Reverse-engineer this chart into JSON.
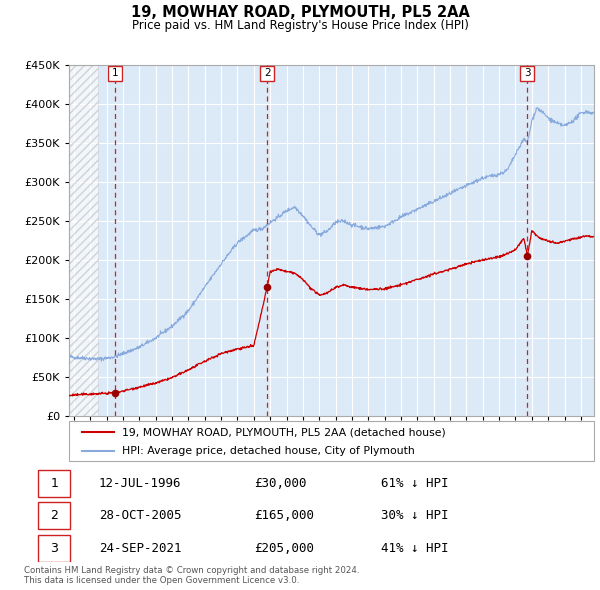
{
  "title": "19, MOWHAY ROAD, PLYMOUTH, PL5 2AA",
  "subtitle": "Price paid vs. HM Land Registry's House Price Index (HPI)",
  "plot_bg_color": "#dce9f7",
  "hpi_color": "#88aadd",
  "price_color": "#cc0000",
  "marker_color": "#990000",
  "ylim": [
    0,
    450000
  ],
  "yticks": [
    0,
    50000,
    100000,
    150000,
    200000,
    250000,
    300000,
    350000,
    400000,
    450000
  ],
  "xlim_start": 1993.7,
  "xlim_end": 2025.8,
  "sale_points": [
    {
      "year": 1996.54,
      "price": 30000,
      "label": "1",
      "date": "12-JUL-1996",
      "pct": "61% ↓ HPI"
    },
    {
      "year": 2005.82,
      "price": 165000,
      "label": "2",
      "date": "28-OCT-2005",
      "pct": "30% ↓ HPI"
    },
    {
      "year": 2021.73,
      "price": 205000,
      "label": "3",
      "date": "24-SEP-2021",
      "pct": "41% ↓ HPI"
    }
  ],
  "legend_line1": "19, MOWHAY ROAD, PLYMOUTH, PL5 2AA (detached house)",
  "legend_line2": "HPI: Average price, detached house, City of Plymouth",
  "footer_line1": "Contains HM Land Registry data © Crown copyright and database right 2024.",
  "footer_line2": "This data is licensed under the Open Government Licence v3.0.",
  "hatch_years_end": 1995.5,
  "table_data": [
    [
      "1",
      "12-JUL-1996",
      "£30,000",
      "61% ↓ HPI"
    ],
    [
      "2",
      "28-OCT-2005",
      "£165,000",
      "30% ↓ HPI"
    ],
    [
      "3",
      "24-SEP-2021",
      "£205,000",
      "41% ↓ HPI"
    ]
  ]
}
